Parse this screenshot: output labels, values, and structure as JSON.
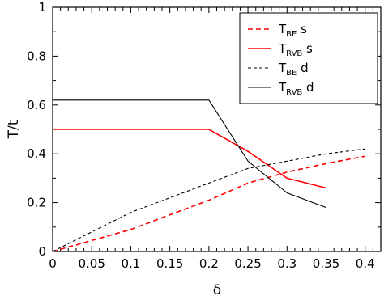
{
  "chart_data": {
    "type": "line",
    "xlabel": "δ",
    "ylabel": "T/t",
    "xlim": [
      0,
      0.42
    ],
    "ylim": [
      0,
      1
    ],
    "x_ticks": [
      "0",
      "0.05",
      "0.1",
      "0.15",
      "0.2",
      "0.25",
      "0.3",
      "0.35",
      "0.4"
    ],
    "y_ticks": [
      "0",
      "0.2",
      "0.4",
      "0.6",
      "0.8",
      "1"
    ],
    "grid": false,
    "legend_position": "top-right",
    "series": [
      {
        "name_main": "T",
        "name_sub": "BE",
        "name_suffix": " s",
        "color": "#ff0000",
        "style": "dashed",
        "x": [
          0,
          0.05,
          0.1,
          0.15,
          0.2,
          0.25,
          0.3,
          0.35,
          0.4
        ],
        "y": [
          0,
          0.045,
          0.09,
          0.15,
          0.21,
          0.28,
          0.325,
          0.36,
          0.39
        ]
      },
      {
        "name_main": "T",
        "name_sub": "RVB",
        "name_suffix": " s",
        "color": "#ff0000",
        "style": "solid",
        "x": [
          0,
          0.05,
          0.1,
          0.15,
          0.2,
          0.25,
          0.3,
          0.35
        ],
        "y": [
          0.5,
          0.5,
          0.5,
          0.5,
          0.5,
          0.41,
          0.3,
          0.26
        ]
      },
      {
        "name_main": "T",
        "name_sub": "BE",
        "name_suffix": " d",
        "color": "#000000",
        "style": "dashed",
        "x": [
          0,
          0.05,
          0.1,
          0.15,
          0.2,
          0.25,
          0.3,
          0.35,
          0.4
        ],
        "y": [
          0,
          0.08,
          0.16,
          0.22,
          0.28,
          0.34,
          0.37,
          0.4,
          0.42
        ]
      },
      {
        "name_main": "T",
        "name_sub": "RVB",
        "name_suffix": " d",
        "color": "#000000",
        "style": "solid",
        "x": [
          0,
          0.05,
          0.1,
          0.15,
          0.2,
          0.25,
          0.3,
          0.35
        ],
        "y": [
          0.62,
          0.62,
          0.62,
          0.62,
          0.62,
          0.37,
          0.24,
          0.18
        ]
      }
    ]
  }
}
